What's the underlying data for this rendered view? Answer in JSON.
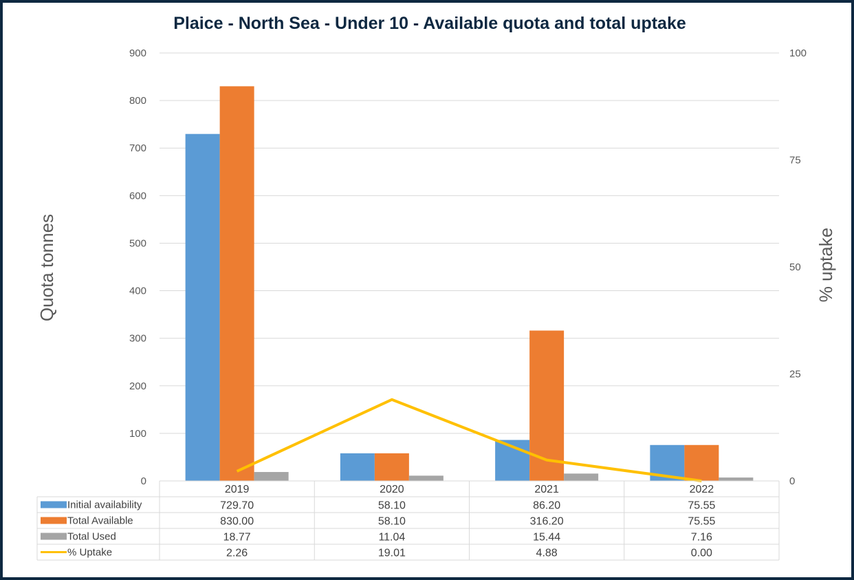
{
  "chart_data": {
    "type": "bar",
    "title": "Plaice - North Sea - Under 10 - Available quota and total uptake",
    "categories": [
      "2019",
      "2020",
      "2021",
      "2022"
    ],
    "series": [
      {
        "name": "Initial availability",
        "kind": "bar",
        "axis": "left",
        "color": "#5b9bd5",
        "values": [
          729.7,
          58.1,
          86.2,
          75.55
        ],
        "labels": [
          "729.70",
          "58.10",
          "86.20",
          "75.55"
        ]
      },
      {
        "name": "Total Available",
        "kind": "bar",
        "axis": "left",
        "color": "#ed7d31",
        "values": [
          830.0,
          58.1,
          316.2,
          75.55
        ],
        "labels": [
          "830.00",
          "58.10",
          "316.20",
          "75.55"
        ]
      },
      {
        "name": "Total Used",
        "kind": "bar",
        "axis": "left",
        "color": "#a5a5a5",
        "values": [
          18.77,
          11.04,
          15.44,
          7.16
        ],
        "labels": [
          "18.77",
          "11.04",
          "15.44",
          "7.16"
        ]
      },
      {
        "name": "% Uptake",
        "kind": "line",
        "axis": "right",
        "color": "#ffc000",
        "values": [
          2.26,
          19.01,
          4.88,
          0.0
        ],
        "labels": [
          "2.26",
          "19.01",
          "4.88",
          "0.00"
        ]
      }
    ],
    "ylabel": "Quota tonnes",
    "y2label": "% uptake",
    "ylim": [
      0,
      900
    ],
    "y2lim": [
      0,
      100
    ],
    "yticks": [
      0,
      100,
      200,
      300,
      400,
      500,
      600,
      700,
      800,
      900
    ],
    "y2ticks": [
      0,
      25,
      50,
      75,
      100
    ],
    "grid": true,
    "data_table": true
  }
}
